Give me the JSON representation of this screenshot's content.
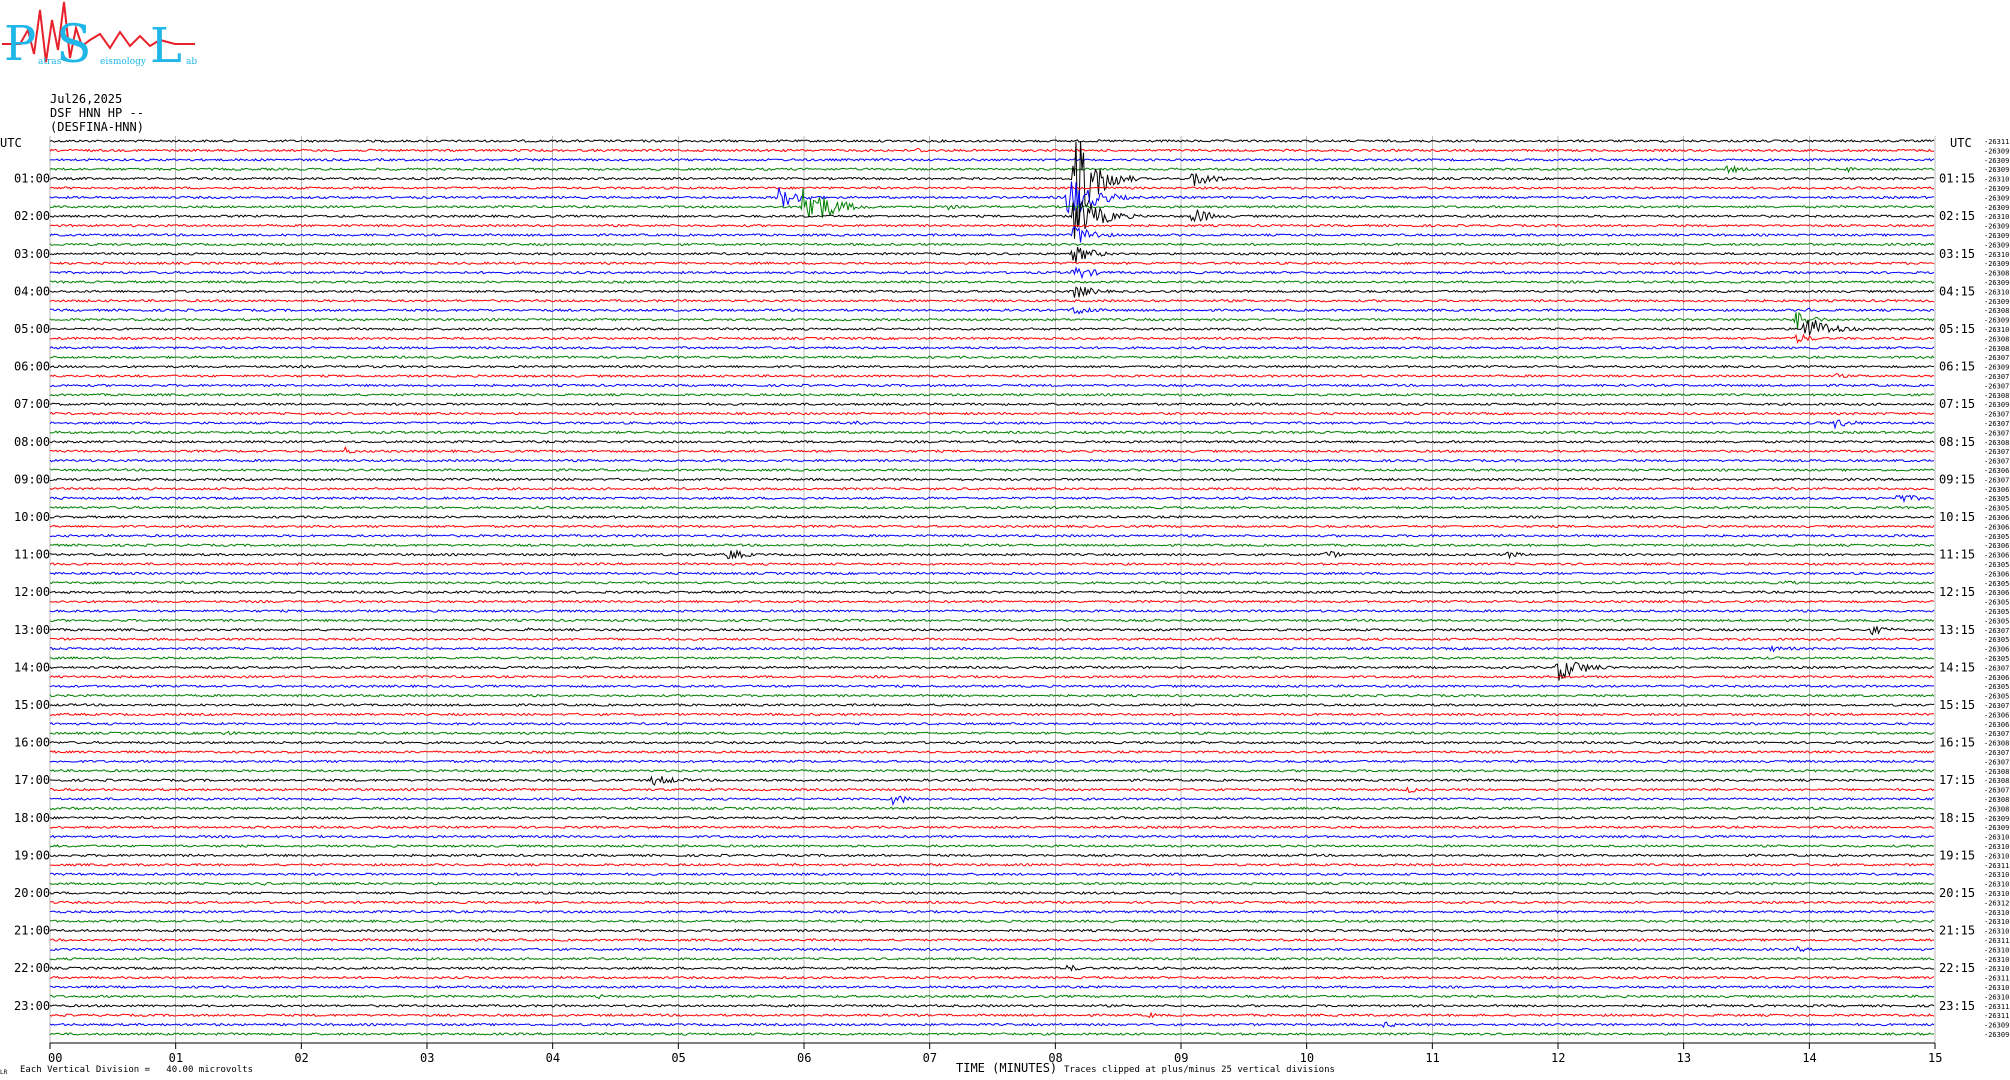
{
  "header": {
    "date": "Jul26,2025",
    "station": "DSF HNN HP --",
    "network": "(DESFINA-HNN)",
    "logo_initials": [
      "P",
      "S",
      "L"
    ],
    "logo_small_text": [
      "atras",
      "eismology",
      "ab"
    ]
  },
  "footer": {
    "vertical_division": "Each Vertical Division =   40.00 microvolts",
    "clip_note": "Traces clipped at plus/minus 25 vertical divisions",
    "corner_mark": "LR"
  },
  "colors": {
    "trace_cycle": [
      "#000000",
      "#ff0000",
      "#0000ff",
      "#008000"
    ],
    "grid": "#888888",
    "logo_blue": "#1fb6e8",
    "logo_red": "#e8202a"
  },
  "chart_data": {
    "type": "line",
    "title": "",
    "xlabel": "TIME (MINUTES)",
    "x_ticks": [
      "00",
      "01",
      "02",
      "03",
      "04",
      "05",
      "06",
      "07",
      "08",
      "09",
      "10",
      "11",
      "12",
      "13",
      "14",
      "15"
    ],
    "xlim": [
      0,
      15
    ],
    "left_axis_title": "UTC",
    "right_axis_title": "UTC",
    "left_hour_labels": [
      "01:00",
      "02:00",
      "03:00",
      "04:00",
      "05:00",
      "06:00",
      "07:00",
      "08:00",
      "09:00",
      "10:00",
      "11:00",
      "12:00",
      "13:00",
      "14:00",
      "15:00",
      "16:00",
      "17:00",
      "18:00",
      "19:00",
      "20:00",
      "21:00",
      "22:00",
      "23:00"
    ],
    "right_hour_labels": [
      "01:15",
      "02:15",
      "03:15",
      "04:15",
      "05:15",
      "06:15",
      "07:15",
      "08:15",
      "09:15",
      "10:15",
      "11:15",
      "12:15",
      "13:15",
      "14:15",
      "15:15",
      "16:15",
      "17:15",
      "18:15",
      "19:15",
      "20:15",
      "21:15",
      "22:15",
      "23:15"
    ],
    "trace_count": 96,
    "minutes_per_trace": 15,
    "trace_offsets": [
      "-26311",
      "-26309",
      "-26309",
      "-26309",
      "-26310",
      "-26309",
      "-26309",
      "-26309",
      "-26310",
      "-26309",
      "-26309",
      "-26309",
      "-26310",
      "-26309",
      "-26308",
      "-26309",
      "-26310",
      "-26309",
      "-26308",
      "-26309",
      "-26310",
      "-26308",
      "-26308",
      "-26307",
      "-26309",
      "-26307",
      "-26307",
      "-26308",
      "-26309",
      "-26307",
      "-26307",
      "-26307",
      "-26308",
      "-26307",
      "-26307",
      "-26306",
      "-26307",
      "-26306",
      "-26305",
      "-26305",
      "-26306",
      "-26306",
      "-26305",
      "-26306",
      "-26306",
      "-26305",
      "-26306",
      "-26305",
      "-26306",
      "-26305",
      "-26305",
      "-26305",
      "-26307",
      "-26305",
      "-26306",
      "-26305",
      "-26307",
      "-26306",
      "-26305",
      "-26305",
      "-26307",
      "-26306",
      "-26306",
      "-26307",
      "-26308",
      "-26307",
      "-26307",
      "-26308",
      "-26308",
      "-26307",
      "-26308",
      "-26308",
      "-26309",
      "-26309",
      "-26310",
      "-26310",
      "-26310",
      "-26311",
      "-26310",
      "-26310",
      "-26310",
      "-26312",
      "-26310",
      "-26310",
      "-26310",
      "-26311",
      "-26310",
      "-26310",
      "-26310",
      "-26311",
      "-26310",
      "-26310",
      "-26311",
      "-26311",
      "-26309",
      "-26309"
    ],
    "events": [
      {
        "trace": 1,
        "minute": 6.9,
        "amp": 3,
        "dur": 0.4
      },
      {
        "trace": 3,
        "minute": 13.35,
        "amp": 4,
        "dur": 0.5
      },
      {
        "trace": 3,
        "minute": 14.3,
        "amp": 3,
        "dur": 0.4
      },
      {
        "trace": 4,
        "minute": 8.15,
        "amp": 60,
        "dur": 0.5
      },
      {
        "trace": 4,
        "minute": 9.1,
        "amp": 10,
        "dur": 0.5
      },
      {
        "trace": 5,
        "minute": 2.5,
        "amp": 2,
        "dur": 0.3
      },
      {
        "trace": 6,
        "minute": 5.8,
        "amp": 12,
        "dur": 0.5
      },
      {
        "trace": 6,
        "minute": 8.1,
        "amp": 25,
        "dur": 0.6
      },
      {
        "trace": 7,
        "minute": 6.0,
        "amp": 28,
        "dur": 0.6
      },
      {
        "trace": 7,
        "minute": 7.15,
        "amp": 3,
        "dur": 0.3
      },
      {
        "trace": 8,
        "minute": 8.15,
        "amp": 25,
        "dur": 0.6
      },
      {
        "trace": 8,
        "minute": 9.1,
        "amp": 10,
        "dur": 0.4
      },
      {
        "trace": 10,
        "minute": 8.15,
        "amp": 12,
        "dur": 0.5
      },
      {
        "trace": 12,
        "minute": 8.15,
        "amp": 10,
        "dur": 0.5
      },
      {
        "trace": 14,
        "minute": 8.15,
        "amp": 8,
        "dur": 0.5
      },
      {
        "trace": 16,
        "minute": 8.15,
        "amp": 8,
        "dur": 0.5
      },
      {
        "trace": 17,
        "minute": 12.3,
        "amp": 2,
        "dur": 0.3
      },
      {
        "trace": 18,
        "minute": 8.15,
        "amp": 6,
        "dur": 0.5
      },
      {
        "trace": 18,
        "minute": 14.0,
        "amp": 3,
        "dur": 0.3
      },
      {
        "trace": 19,
        "minute": 13.9,
        "amp": 10,
        "dur": 0.4
      },
      {
        "trace": 20,
        "minute": 13.95,
        "amp": 16,
        "dur": 0.6
      },
      {
        "trace": 21,
        "minute": 13.9,
        "amp": 6,
        "dur": 0.4
      },
      {
        "trace": 25,
        "minute": 14.2,
        "amp": 3,
        "dur": 0.4
      },
      {
        "trace": 30,
        "minute": 14.2,
        "amp": 5,
        "dur": 0.6
      },
      {
        "trace": 30,
        "minute": 6.4,
        "amp": 3,
        "dur": 0.4
      },
      {
        "trace": 33,
        "minute": 2.35,
        "amp": 4,
        "dur": 0.3
      },
      {
        "trace": 38,
        "minute": 14.7,
        "amp": 5,
        "dur": 0.6
      },
      {
        "trace": 44,
        "minute": 5.4,
        "amp": 7,
        "dur": 0.4
      },
      {
        "trace": 44,
        "minute": 10.15,
        "amp": 5,
        "dur": 0.4
      },
      {
        "trace": 44,
        "minute": 11.6,
        "amp": 4,
        "dur": 0.4
      },
      {
        "trace": 47,
        "minute": 13.8,
        "amp": 3,
        "dur": 0.4
      },
      {
        "trace": 52,
        "minute": 3.8,
        "amp": 2,
        "dur": 0.3
      },
      {
        "trace": 52,
        "minute": 14.5,
        "amp": 5,
        "dur": 0.5
      },
      {
        "trace": 54,
        "minute": 13.7,
        "amp": 3,
        "dur": 0.8
      },
      {
        "trace": 56,
        "minute": 12.0,
        "amp": 14,
        "dur": 0.6
      },
      {
        "trace": 59,
        "minute": 7.15,
        "amp": 2,
        "dur": 0.3
      },
      {
        "trace": 63,
        "minute": 1.4,
        "amp": 3,
        "dur": 0.4
      },
      {
        "trace": 68,
        "minute": 4.8,
        "amp": 6,
        "dur": 0.6
      },
      {
        "trace": 69,
        "minute": 10.8,
        "amp": 4,
        "dur": 0.4
      },
      {
        "trace": 70,
        "minute": 6.7,
        "amp": 6,
        "dur": 0.5
      },
      {
        "trace": 79,
        "minute": 1.7,
        "amp": 2,
        "dur": 0.3
      },
      {
        "trace": 83,
        "minute": 6.1,
        "amp": 2,
        "dur": 0.3
      },
      {
        "trace": 86,
        "minute": 13.9,
        "amp": 3,
        "dur": 0.4
      },
      {
        "trace": 88,
        "minute": 8.1,
        "amp": 4,
        "dur": 0.4
      },
      {
        "trace": 91,
        "minute": 4.35,
        "amp": 3,
        "dur": 0.3
      },
      {
        "trace": 93,
        "minute": 8.75,
        "amp": 3,
        "dur": 0.3
      },
      {
        "trace": 94,
        "minute": 10.6,
        "amp": 3,
        "dur": 0.8
      }
    ],
    "grid": true
  }
}
